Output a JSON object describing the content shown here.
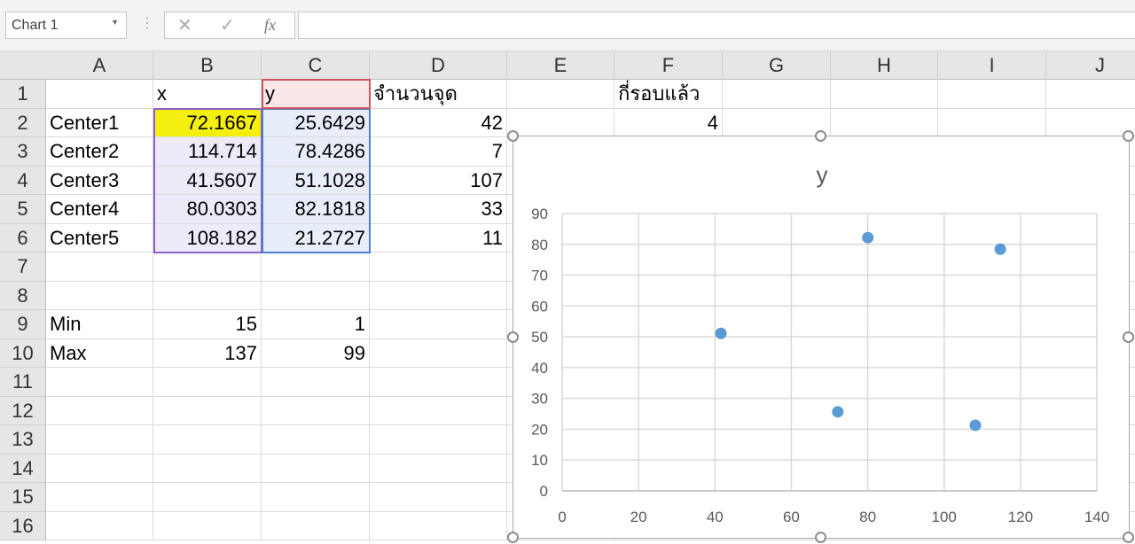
{
  "name_box": {
    "value": "Chart 1"
  },
  "formula_bar": {
    "value": "",
    "cancel_icon": "x-icon",
    "enter_icon": "check-icon",
    "function_label": "fx"
  },
  "columns": [
    "A",
    "B",
    "C",
    "D",
    "E",
    "F",
    "G",
    "H",
    "I",
    "J"
  ],
  "rows": [
    "1",
    "2",
    "3",
    "4",
    "5",
    "6",
    "7",
    "8",
    "9",
    "10",
    "11",
    "12",
    "13",
    "14",
    "15",
    "16"
  ],
  "cells": [
    {
      "ref": "B1",
      "value": "x",
      "align": "left"
    },
    {
      "ref": "C1",
      "value": "y",
      "align": "left"
    },
    {
      "ref": "D1",
      "value": "จำนวนจุด",
      "align": "left"
    },
    {
      "ref": "F1",
      "value": "กี่รอบแล้ว",
      "align": "left"
    },
    {
      "ref": "A2",
      "value": "Center1",
      "align": "left"
    },
    {
      "ref": "B2",
      "value": "72.1667",
      "align": "right"
    },
    {
      "ref": "C2",
      "value": "25.6429",
      "align": "right"
    },
    {
      "ref": "D2",
      "value": "42",
      "align": "right"
    },
    {
      "ref": "F2",
      "value": "4",
      "align": "right"
    },
    {
      "ref": "A3",
      "value": "Center2",
      "align": "left"
    },
    {
      "ref": "B3",
      "value": "114.714",
      "align": "right"
    },
    {
      "ref": "C3",
      "value": "78.4286",
      "align": "right"
    },
    {
      "ref": "D3",
      "value": "7",
      "align": "right"
    },
    {
      "ref": "A4",
      "value": "Center3",
      "align": "left"
    },
    {
      "ref": "B4",
      "value": "41.5607",
      "align": "right"
    },
    {
      "ref": "C4",
      "value": "51.1028",
      "align": "right"
    },
    {
      "ref": "D4",
      "value": "107",
      "align": "right"
    },
    {
      "ref": "A5",
      "value": "Center4",
      "align": "left"
    },
    {
      "ref": "B5",
      "value": "80.0303",
      "align": "right"
    },
    {
      "ref": "C5",
      "value": "82.1818",
      "align": "right"
    },
    {
      "ref": "D5",
      "value": "33",
      "align": "right"
    },
    {
      "ref": "A6",
      "value": "Center5",
      "align": "left"
    },
    {
      "ref": "B6",
      "value": "108.182",
      "align": "right"
    },
    {
      "ref": "C6",
      "value": "21.2727",
      "align": "right"
    },
    {
      "ref": "D6",
      "value": "11",
      "align": "right"
    },
    {
      "ref": "A9",
      "value": "Min",
      "align": "left"
    },
    {
      "ref": "B9",
      "value": "15",
      "align": "right"
    },
    {
      "ref": "C9",
      "value": "1",
      "align": "right"
    },
    {
      "ref": "A10",
      "value": "Max",
      "align": "left"
    },
    {
      "ref": "B10",
      "value": "137",
      "align": "right"
    },
    {
      "ref": "C10",
      "value": "99",
      "align": "right"
    }
  ],
  "highlight": {
    "B2": "#f5ef0f",
    "x_range": "#efeaf7",
    "y_range": "#e8eef9",
    "y_header": "#fbe7e8"
  },
  "chart_data": {
    "type": "scatter",
    "title": "y",
    "x": [
      72.1667,
      114.714,
      41.5607,
      80.0303,
      108.182
    ],
    "y": [
      25.6429,
      78.4286,
      51.1028,
      82.1818,
      21.2727
    ],
    "xlim": [
      0,
      140
    ],
    "ylim": [
      0,
      90
    ],
    "xticks": [
      "0",
      "20",
      "40",
      "60",
      "80",
      "100",
      "120",
      "140"
    ],
    "yticks": [
      "0",
      "10",
      "20",
      "30",
      "40",
      "50",
      "60",
      "70",
      "80",
      "90"
    ],
    "grid": true,
    "legend": "none",
    "marker_color": "#5b9bd5"
  }
}
